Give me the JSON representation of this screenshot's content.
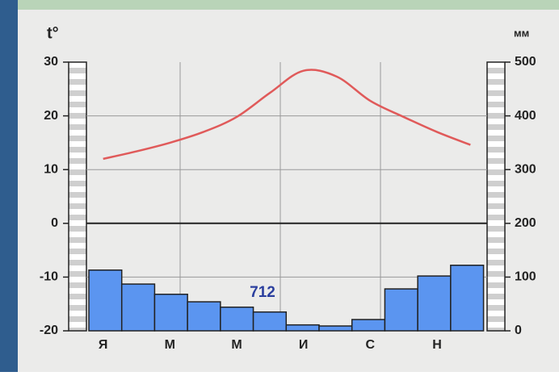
{
  "chart_data": {
    "type": "climate",
    "y_label": "t°",
    "y2_label": "мм",
    "annotation": "712",
    "categories": [
      "Я",
      null,
      "М",
      null,
      "М",
      null,
      "И",
      null,
      "С",
      null,
      "Н",
      null
    ],
    "series": [
      {
        "name": "temperature",
        "type": "line",
        "color": "#e05a5a",
        "values": [
          12,
          13.4,
          15,
          17,
          19.8,
          24.3,
          28.4,
          27.3,
          22.8,
          19.8,
          17,
          14.6
        ]
      },
      {
        "name": "precipitation",
        "type": "bar",
        "axis": "y2",
        "color": "#5b95f0",
        "values": [
          113,
          87,
          68,
          54,
          44,
          35,
          11,
          9,
          21,
          78,
          102,
          122
        ]
      }
    ],
    "ylim": [
      -20,
      30
    ],
    "yticks": [
      30,
      20,
      10,
      0,
      -10,
      -20
    ],
    "y2lim": [
      0,
      500
    ],
    "y2ticks": [
      500,
      400,
      300,
      200,
      100,
      0
    ],
    "grid": true
  }
}
